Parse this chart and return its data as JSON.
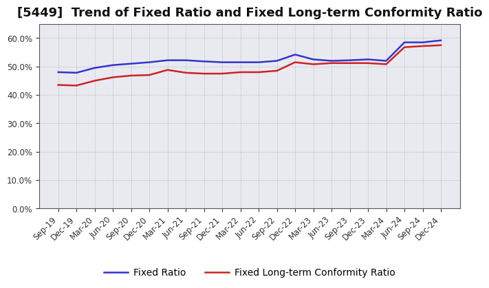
{
  "title": "[5449]  Trend of Fixed Ratio and Fixed Long-term Conformity Ratio",
  "x_labels": [
    "Sep-19",
    "Dec-19",
    "Mar-20",
    "Jun-20",
    "Sep-20",
    "Dec-20",
    "Mar-21",
    "Jun-21",
    "Sep-21",
    "Dec-21",
    "Mar-22",
    "Jun-22",
    "Sep-22",
    "Dec-22",
    "Mar-23",
    "Jun-23",
    "Sep-23",
    "Dec-23",
    "Mar-24",
    "Jun-24",
    "Sep-24",
    "Dec-24"
  ],
  "fixed_ratio": [
    48.0,
    47.8,
    49.5,
    50.5,
    51.0,
    51.5,
    52.2,
    52.2,
    51.8,
    51.5,
    51.5,
    51.5,
    52.0,
    54.2,
    52.5,
    52.0,
    52.2,
    52.5,
    52.0,
    58.5,
    58.5,
    59.2
  ],
  "fixed_lt_conformity": [
    43.5,
    43.3,
    45.0,
    46.2,
    46.8,
    47.0,
    48.8,
    47.8,
    47.5,
    47.5,
    48.0,
    48.0,
    48.5,
    51.5,
    50.8,
    51.2,
    51.2,
    51.2,
    50.8,
    56.8,
    57.2,
    57.5
  ],
  "fixed_ratio_color": "#3333cc",
  "fixed_lt_color": "#cc2222",
  "ylim": [
    0,
    65
  ],
  "yticks": [
    0.0,
    10.0,
    20.0,
    30.0,
    40.0,
    50.0,
    60.0
  ],
  "background_color": "#ffffff",
  "plot_bg_color": "#e8eaf0",
  "grid_color": "#999999",
  "legend_fixed_ratio": "Fixed Ratio",
  "legend_fixed_lt": "Fixed Long-term Conformity Ratio",
  "line_width": 1.8,
  "title_fontsize": 13,
  "tick_fontsize": 8.5,
  "legend_fontsize": 10
}
